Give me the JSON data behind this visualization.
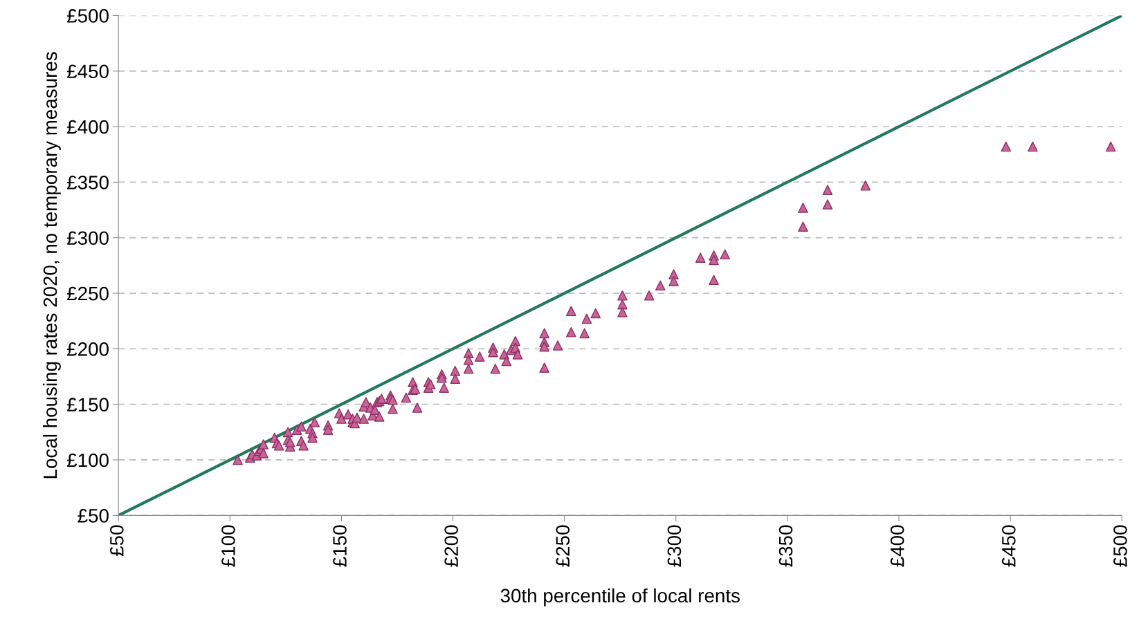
{
  "chart_data": {
    "type": "scatter",
    "xlabel": "30th percentile of local rents",
    "ylabel": "Local housing rates 2020, no temporary measures",
    "xlim": [
      50,
      500
    ],
    "ylim": [
      50,
      500
    ],
    "xticks": [
      {
        "value": 50,
        "label": "£50"
      },
      {
        "value": 100,
        "label": "£100"
      },
      {
        "value": 150,
        "label": "£150"
      },
      {
        "value": 200,
        "label": "£200"
      },
      {
        "value": 250,
        "label": "£250"
      },
      {
        "value": 300,
        "label": "£300"
      },
      {
        "value": 350,
        "label": "£350"
      },
      {
        "value": 400,
        "label": "£400"
      },
      {
        "value": 450,
        "label": "£450"
      },
      {
        "value": 500,
        "label": "£500"
      }
    ],
    "yticks": [
      {
        "value": 50,
        "label": "£50"
      },
      {
        "value": 100,
        "label": "£100"
      },
      {
        "value": 150,
        "label": "£150"
      },
      {
        "value": 200,
        "label": "£200"
      },
      {
        "value": 250,
        "label": "£250"
      },
      {
        "value": 300,
        "label": "£300"
      },
      {
        "value": 350,
        "label": "£350"
      },
      {
        "value": 400,
        "label": "£400"
      },
      {
        "value": 450,
        "label": "£450"
      },
      {
        "value": 500,
        "label": "£500"
      }
    ],
    "grid": "y",
    "legend": false,
    "marker": "triangle",
    "series": [
      {
        "color": "#c8649a",
        "x": [
          103.5,
          109,
          110,
          112,
          113,
          114,
          115,
          115,
          120,
          121,
          122,
          126,
          126,
          127,
          127,
          130,
          132,
          132,
          133,
          136,
          137,
          137,
          138,
          144,
          144,
          149,
          150,
          153,
          155,
          155,
          156,
          157,
          160,
          160,
          161,
          163,
          164,
          165,
          166,
          167,
          167,
          168,
          172,
          172,
          173,
          173,
          179,
          182,
          182,
          183,
          184,
          189,
          189,
          190,
          195,
          195,
          196,
          201,
          201,
          207,
          207,
          207,
          212,
          218,
          218,
          219,
          223,
          224,
          226,
          228,
          228,
          229,
          241,
          241,
          241,
          241,
          247,
          253,
          253,
          259,
          260,
          264,
          276,
          276,
          276,
          288,
          293,
          299,
          299,
          311,
          317,
          317,
          317,
          322,
          357,
          357,
          368,
          368,
          385,
          448,
          460,
          495
        ],
        "values": [
          100,
          102,
          105,
          104,
          108,
          110,
          114,
          106,
          120,
          115,
          113,
          125,
          118,
          112,
          116,
          127,
          130,
          117,
          113,
          128,
          124,
          120,
          134,
          131,
          127,
          142,
          137,
          141,
          134,
          137,
          133,
          138,
          148,
          137,
          152,
          147,
          140,
          145,
          152,
          139,
          153,
          155,
          158,
          155,
          146,
          154,
          156,
          170,
          163,
          164,
          147,
          170,
          165,
          168,
          177,
          174,
          165,
          180,
          173,
          196,
          190,
          182,
          193,
          201,
          197,
          182,
          195,
          189,
          199,
          207,
          201,
          195,
          214,
          206,
          202,
          183,
          203,
          234,
          215,
          214,
          227,
          232,
          248,
          240,
          233,
          248,
          257,
          267,
          261,
          282,
          284,
          280,
          262,
          285,
          327,
          310,
          343,
          330,
          347,
          382,
          382,
          382
        ]
      },
      {
        "type": "line",
        "color": "#217a5a",
        "line_style": "solid",
        "marker": "none",
        "x": [
          50,
          500
        ],
        "values": [
          50,
          500
        ]
      }
    ]
  }
}
